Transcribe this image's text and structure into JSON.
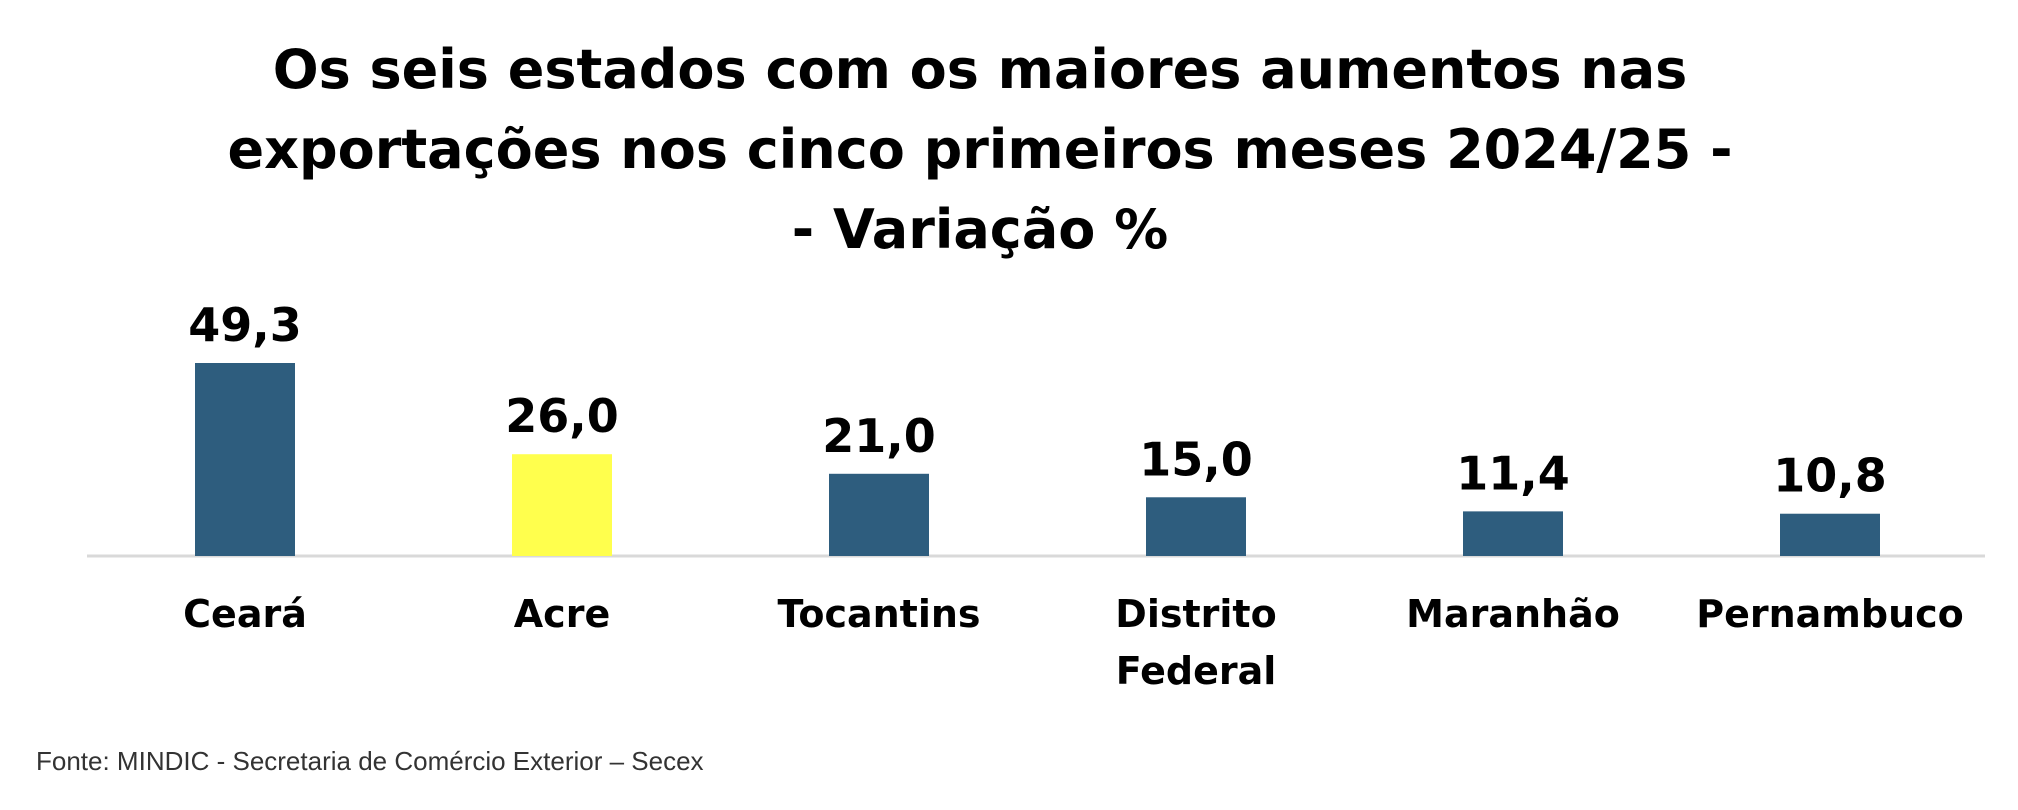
{
  "chart_data": {
    "type": "bar",
    "title_lines": [
      "Os seis estados com os maiores aumentos nas",
      "exportações nos cinco primeiros meses 2024/25 -",
      "- Variação %"
    ],
    "categories": [
      [
        "Ceará"
      ],
      [
        "Acre"
      ],
      [
        "Tocantins"
      ],
      [
        "Distrito",
        "Federal"
      ],
      [
        "Maranhão"
      ],
      [
        "Pernambuco"
      ]
    ],
    "values": [
      49.3,
      26.0,
      21.0,
      15.0,
      11.4,
      10.8
    ],
    "value_labels": [
      "49,3",
      "26,0",
      "21,0",
      "15,0",
      "11,4",
      "10,8"
    ],
    "bar_colors": [
      "#2E5D7E",
      "#FFFF4D",
      "#2E5D7E",
      "#2E5D7E",
      "#2E5D7E",
      "#2E5D7E"
    ],
    "axis_line_color": "#D9D9D9",
    "ylim": [
      0,
      49.3
    ],
    "grid": false,
    "legend": "none",
    "source": "Fonte: MINDIC - Secretaria de Comércio Exterior – Secex"
  }
}
